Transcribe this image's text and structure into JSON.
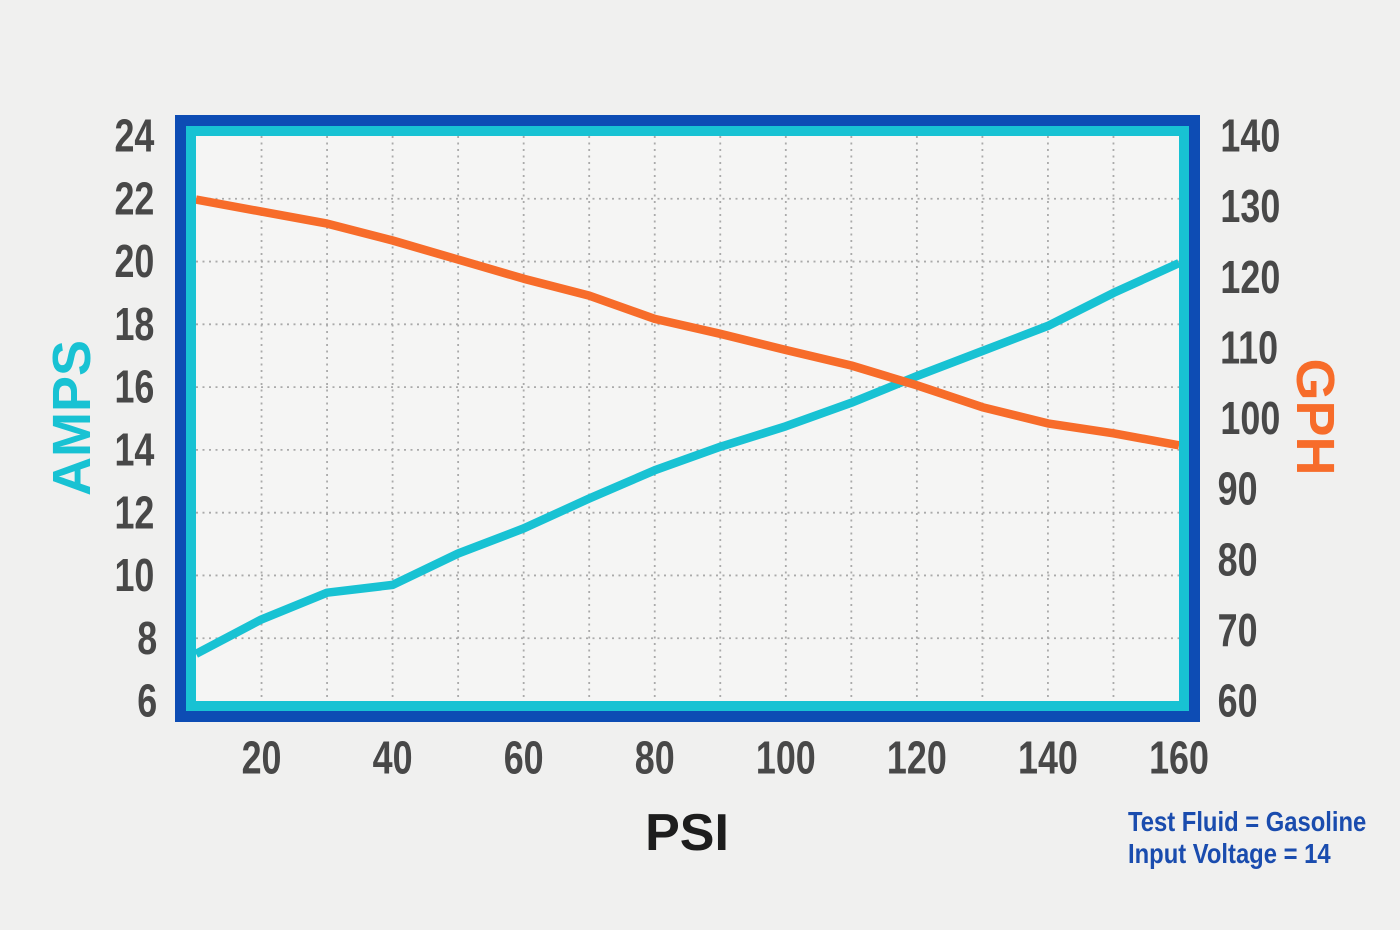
{
  "page": {
    "background": "#f0f0ef",
    "plot_background": "#f5f5f4",
    "frame_outer_color": "#0d4cb4",
    "frame_inner_color": "#18c2d3",
    "grid_color": "#aaaaaa",
    "tick_text_color": "#484848"
  },
  "chart_data": {
    "type": "line",
    "title": "",
    "xlabel": "PSI",
    "ylabel_left": "AMPS",
    "ylabel_right": "GPH",
    "x_range": [
      10,
      160
    ],
    "y_left_range": [
      6,
      24
    ],
    "y_right_range": [
      60,
      140
    ],
    "x_tick_labels": [
      20,
      40,
      60,
      80,
      100,
      120,
      140,
      160
    ],
    "y_left_ticks": [
      24,
      22,
      20,
      18,
      16,
      14,
      12,
      10,
      8,
      6
    ],
    "y_right_ticks": [
      140,
      130,
      120,
      110,
      100,
      90,
      80,
      70,
      60
    ],
    "x_gridlines": [
      20,
      30,
      40,
      50,
      60,
      70,
      80,
      90,
      100,
      110,
      120,
      130,
      140,
      150
    ],
    "y_gridlines": [
      8,
      10,
      12,
      14,
      16,
      18,
      20,
      22
    ],
    "grid": "dotted",
    "legend": "none",
    "x": [
      10,
      20,
      30,
      40,
      50,
      60,
      70,
      80,
      90,
      100,
      110,
      120,
      130,
      140,
      150,
      160
    ],
    "series": [
      {
        "name": "AMPS",
        "axis": "left",
        "color": "#18c2d3",
        "values": [
          7.5,
          8.6,
          9.45,
          9.7,
          10.7,
          11.5,
          12.45,
          13.35,
          14.1,
          14.75,
          15.5,
          16.35,
          17.15,
          17.95,
          19.0,
          19.95
        ]
      },
      {
        "name": "GPH",
        "axis": "right",
        "color": "#f76c2a",
        "values": [
          131,
          129.3,
          127.6,
          125.2,
          122.5,
          119.8,
          117.4,
          114.1,
          112.0,
          109.7,
          107.5,
          104.7,
          101.6,
          99.3,
          97.9,
          96.2
        ]
      }
    ],
    "annotation": {
      "line1": "Test Fluid = Gasoline",
      "line2": "Input Voltage = 14",
      "color": "#1a4cae"
    }
  }
}
